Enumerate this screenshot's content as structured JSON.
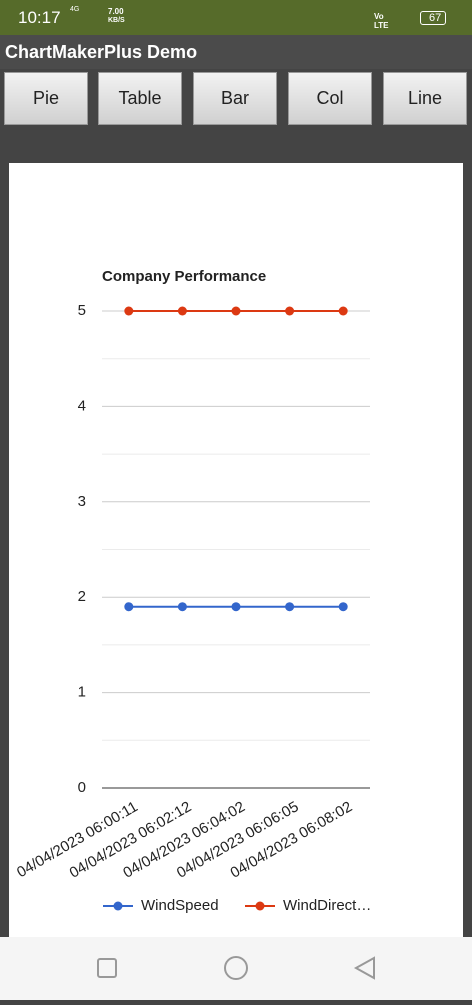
{
  "status_bar": {
    "time": "10:17",
    "network": "4G",
    "speed": "7.00",
    "speed_unit": "KB/S",
    "volte": "Vo LTE",
    "battery": "67"
  },
  "app": {
    "title": "ChartMakerPlus Demo",
    "buttons": [
      "Pie",
      "Table",
      "Bar",
      "Col",
      "Line"
    ]
  },
  "chart_data": {
    "type": "line",
    "title": "Company Performance",
    "categories": [
      "04/04/2023 06:00:11",
      "04/04/2023 06:02:12",
      "04/04/2023 06:04:02",
      "04/04/2023 06:06:05",
      "04/04/2023 06:08:02"
    ],
    "series": [
      {
        "name": "WindSpeed",
        "color": "#3366cc",
        "values": [
          1.9,
          1.9,
          1.9,
          1.9,
          1.9
        ]
      },
      {
        "name": "WindDirect…",
        "color": "#dc3912",
        "values": [
          5,
          5,
          5,
          5,
          5
        ]
      }
    ],
    "ylim": [
      0,
      5
    ],
    "yticks": [
      0,
      1,
      2,
      3,
      4,
      5
    ],
    "minor_yticks": [
      0.5,
      1.5,
      2.5,
      3.5,
      4.5
    ],
    "grid": true,
    "legend": "bottom"
  }
}
